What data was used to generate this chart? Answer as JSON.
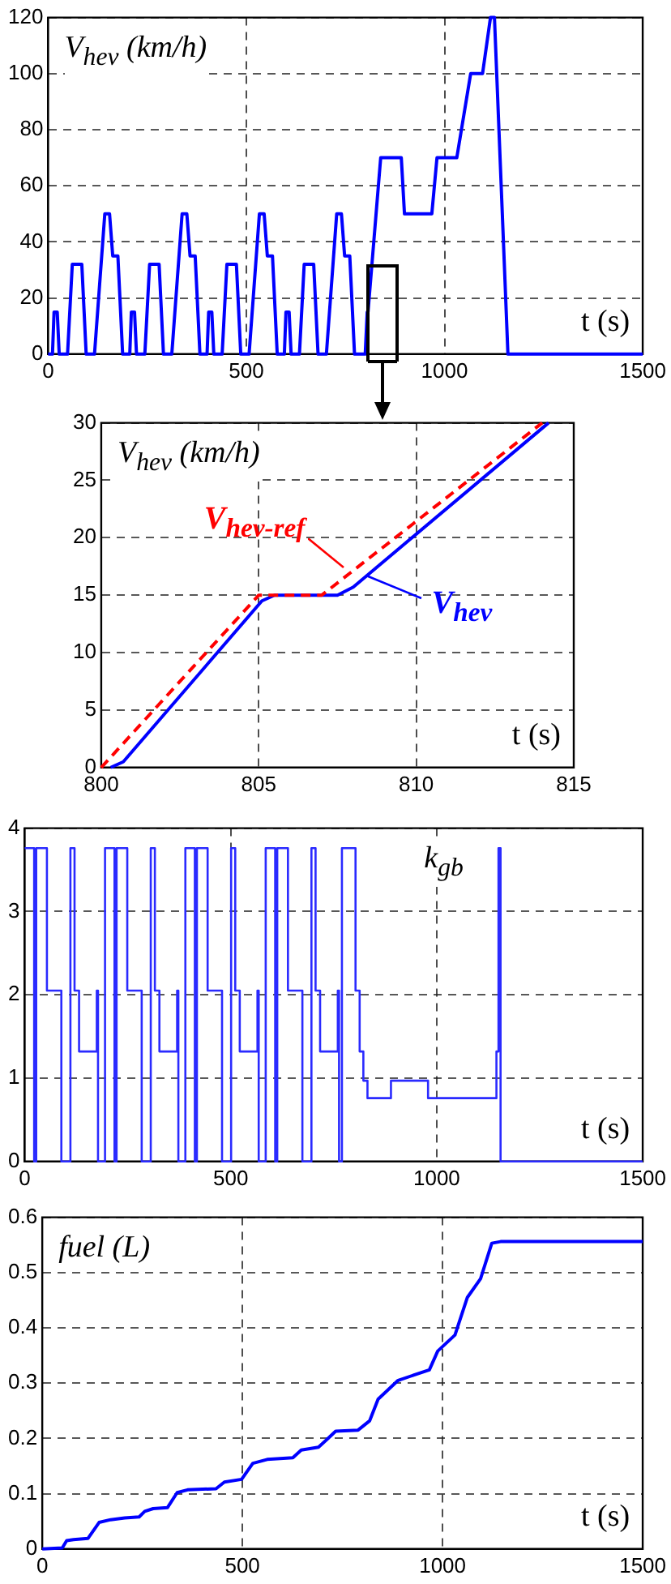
{
  "chart_data": [
    {
      "type": "line",
      "ylabel": "V$_{hev}$ (km/h)",
      "xlabel": "t (s)",
      "xlim": [
        0,
        1500
      ],
      "xticks": [
        0,
        500,
        1000,
        1500
      ],
      "ylim": [
        0,
        120
      ],
      "yticks": [
        0,
        20,
        40,
        60,
        80,
        100,
        120
      ],
      "grid": true,
      "x": [
        0,
        11,
        15,
        23,
        28,
        49,
        61,
        85,
        96,
        117,
        143,
        155,
        163,
        176,
        188,
        195,
        206,
        210,
        218,
        223,
        244,
        256,
        280,
        291,
        312,
        338,
        350,
        358,
        371,
        383,
        390,
        401,
        405,
        413,
        418,
        439,
        451,
        475,
        486,
        507,
        533,
        545,
        553,
        566,
        578,
        585,
        596,
        600,
        608,
        613,
        634,
        646,
        670,
        681,
        702,
        728,
        740,
        748,
        761,
        773,
        780,
        800,
        805,
        807,
        839,
        891,
        899,
        968,
        981,
        1031,
        1066,
        1096,
        1116,
        1126,
        1160,
        1500
      ],
      "series": [
        {
          "color": "#0000ff",
          "values": [
            0,
            0,
            15,
            15,
            0,
            0,
            32,
            32,
            0,
            0,
            50,
            50,
            35,
            35,
            0,
            0,
            0,
            15,
            15,
            0,
            0,
            32,
            32,
            0,
            0,
            50,
            50,
            35,
            35,
            0,
            0,
            0,
            15,
            15,
            0,
            0,
            32,
            32,
            0,
            0,
            50,
            50,
            35,
            35,
            0,
            0,
            0,
            15,
            15,
            0,
            0,
            32,
            32,
            0,
            0,
            50,
            50,
            35,
            35,
            0,
            0,
            0,
            15,
            15,
            70,
            70,
            50,
            50,
            70,
            70,
            100,
            100,
            120,
            120,
            0,
            0
          ]
        }
      ]
    },
    {
      "type": "line",
      "ylabel": "V$_{hev}$ (km/h)",
      "xlabel": "t (s)",
      "xlim": [
        800,
        815
      ],
      "xticks": [
        800,
        805,
        810,
        815
      ],
      "ylim": [
        0,
        30
      ],
      "yticks": [
        0,
        5,
        10,
        15,
        20,
        25,
        30
      ],
      "grid": true,
      "series": [
        {
          "name": "V$_{hev-ref}$",
          "color": "#ff0000",
          "line_style": "dashed",
          "x": [
            800,
            805,
            807,
            814
          ],
          "values": [
            0,
            15,
            15,
            30
          ]
        },
        {
          "name": "V$_{hev}$",
          "color": "#0000ff",
          "x": [
            800.3,
            800.7,
            805.1,
            805.5,
            807.5,
            808,
            814.2
          ],
          "values": [
            0,
            0.5,
            14.5,
            15,
            15,
            15.7,
            30
          ]
        }
      ]
    },
    {
      "type": "step",
      "ylabel": "k$_{gb}$",
      "xlabel": "t (s)",
      "xlim": [
        0,
        1500
      ],
      "xticks": [
        0,
        500,
        1000,
        1500
      ],
      "ylim": [
        0,
        4
      ],
      "yticks": [
        0,
        1,
        2,
        3,
        4
      ],
      "grid": true,
      "x": [
        0,
        23,
        28,
        54,
        89,
        111,
        121,
        132,
        175,
        178,
        195,
        218,
        223,
        249,
        284,
        306,
        316,
        327,
        370,
        373,
        390,
        413,
        418,
        444,
        479,
        501,
        511,
        522,
        565,
        568,
        585,
        608,
        613,
        639,
        674,
        696,
        706,
        717,
        760,
        763,
        770,
        803,
        813,
        822,
        832,
        889,
        979,
        1145,
        1150,
        1155,
        1500
      ],
      "series": [
        {
          "color": "#2a2aff",
          "values": [
            3.76,
            0,
            3.76,
            2.05,
            0,
            3.76,
            2.05,
            1.32,
            2.05,
            0,
            3.76,
            0,
            3.76,
            2.05,
            0,
            3.76,
            2.05,
            1.32,
            2.05,
            0,
            3.76,
            0,
            3.76,
            2.05,
            0,
            3.76,
            2.05,
            1.32,
            2.05,
            0,
            3.76,
            0,
            3.76,
            2.05,
            0,
            3.76,
            2.05,
            1.32,
            2.05,
            0,
            3.76,
            2.05,
            1.32,
            0.97,
            0.76,
            0.97,
            0.76,
            1.32,
            3.76,
            0,
            0
          ]
        }
      ]
    },
    {
      "type": "line",
      "ylabel": "fuel (L)",
      "xlabel": "t (s)",
      "xlim": [
        0,
        1500
      ],
      "xticks": [
        0,
        500,
        1000,
        1500
      ],
      "ylim": [
        0,
        0.6
      ],
      "yticks": [
        0,
        0.1,
        0.2,
        0.3,
        0.4,
        0.5,
        0.6
      ],
      "grid": true,
      "x": [
        0,
        50,
        61,
        78,
        114,
        142,
        171,
        206,
        242,
        256,
        277,
        313,
        337,
        363,
        434,
        455,
        498,
        526,
        562,
        626,
        647,
        690,
        711,
        733,
        789,
        818,
        839,
        889,
        967,
        988,
        1031,
        1062,
        1095,
        1123,
        1145,
        1500
      ],
      "series": [
        {
          "color": "#0000ff",
          "values": [
            0,
            0.002,
            0.015,
            0.017,
            0.019,
            0.048,
            0.053,
            0.056,
            0.058,
            0.068,
            0.073,
            0.075,
            0.102,
            0.107,
            0.109,
            0.121,
            0.126,
            0.155,
            0.162,
            0.165,
            0.179,
            0.184,
            0.198,
            0.213,
            0.215,
            0.232,
            0.271,
            0.305,
            0.324,
            0.358,
            0.387,
            0.455,
            0.489,
            0.553,
            0.556,
            0.556
          ]
        }
      ]
    }
  ]
}
